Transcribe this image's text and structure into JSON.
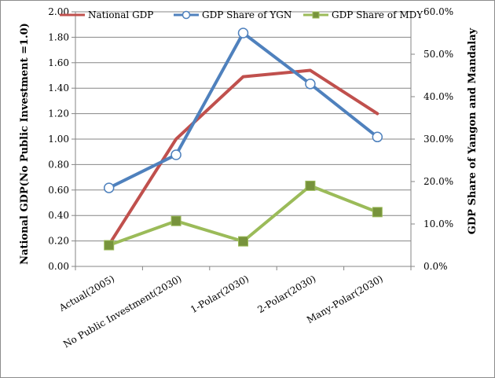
{
  "chart_data": {
    "type": "line",
    "categories": [
      "Actual(2005)",
      "No Public Investment(2030)",
      "1-Polar(2030)",
      "2-Polar(2030)",
      "Many-Polar(2030)"
    ],
    "series": [
      {
        "name": "National GDP",
        "axis": "left",
        "color": "#c0504d",
        "marker": "none",
        "values": [
          0.17,
          1.0,
          1.49,
          1.54,
          1.2
        ]
      },
      {
        "name": "GDP Share of YGN",
        "axis": "right",
        "color": "#4f81bd",
        "marker": "circle",
        "values": [
          0.185,
          0.263,
          0.55,
          0.43,
          0.305
        ]
      },
      {
        "name": "GDP Share of MDY",
        "axis": "right",
        "color": "#9bbb59",
        "marker": "square",
        "values": [
          0.05,
          0.107,
          0.059,
          0.19,
          0.128
        ]
      }
    ],
    "ylabel": "National GDP(No Public Investment =1.0)",
    "y2label": "GDP Share of Yangon and Mandalay",
    "ylim": [
      0,
      2.0
    ],
    "y2lim": [
      0,
      0.6
    ],
    "yticks": [
      "0.00",
      "0.20",
      "0.40",
      "0.60",
      "0.80",
      "1.00",
      "1.20",
      "1.40",
      "1.60",
      "1.80",
      "2.00"
    ],
    "y2ticks": [
      "0.0%",
      "10.0%",
      "20.0%",
      "30.0%",
      "40.0%",
      "50.0%",
      "60.0%"
    ],
    "grid": true,
    "legend": "top"
  }
}
